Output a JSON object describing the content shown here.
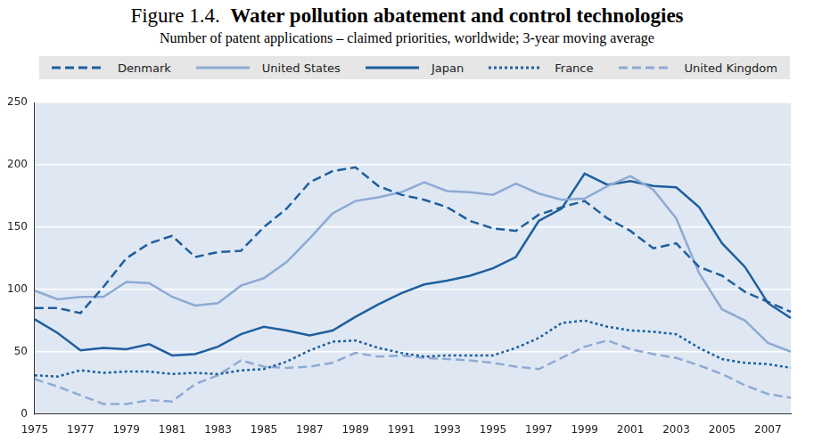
{
  "chart_data": {
    "type": "line",
    "title": "Figure 1.4. Water pollution abatement and control technologies",
    "subtitle": "Number of patent applications – claimed priorities, worldwide; 3-year moving average",
    "categories": [
      "1975",
      null,
      "1977",
      null,
      "1979",
      null,
      "1981",
      null,
      "1983",
      null,
      "1985",
      null,
      "1987",
      null,
      "1989",
      null,
      "1991",
      null,
      "1993",
      null,
      "1995",
      null,
      "1997",
      null,
      "1999",
      null,
      "2001",
      null,
      "2003",
      null,
      "2005",
      null,
      "2007",
      null
    ],
    "series": [
      {
        "name": "Denmark",
        "color": "#1f5f9e",
        "line_style": "dashed",
        "values": [
          85,
          85,
          81,
          102,
          125,
          137,
          143,
          126,
          130,
          131,
          150,
          165,
          186,
          195,
          198,
          183,
          176,
          172,
          166,
          155,
          149,
          147,
          160,
          166,
          171,
          157,
          147,
          133,
          137,
          118,
          111,
          98,
          90,
          82
        ]
      },
      {
        "name": "United States",
        "color": "#8eaad4",
        "line_style": "solid",
        "values": [
          99,
          92,
          94,
          94,
          106,
          105,
          94,
          87,
          89,
          103,
          109,
          122,
          141,
          161,
          171,
          174,
          178,
          186,
          179,
          178,
          176,
          185,
          177,
          172,
          173,
          183,
          191,
          180,
          157,
          113,
          84,
          75,
          57,
          50
        ]
      },
      {
        "name": "Japan",
        "color": "#1f5f9e",
        "line_style": "solid",
        "values": [
          76,
          65,
          51,
          53,
          52,
          56,
          47,
          48,
          54,
          64,
          70,
          67,
          63,
          67,
          78,
          88,
          97,
          104,
          107,
          111,
          117,
          126,
          155,
          165,
          193,
          184,
          187,
          183,
          182,
          166,
          137,
          118,
          89,
          77
        ]
      },
      {
        "name": "France",
        "color": "#1f5f9e",
        "line_style": "dotted",
        "values": [
          31,
          30,
          35,
          33,
          34,
          34,
          32,
          33,
          32,
          35,
          36,
          42,
          51,
          58,
          59,
          53,
          49,
          46,
          47,
          47,
          47,
          53,
          61,
          73,
          75,
          70,
          67,
          66,
          64,
          53,
          44,
          41,
          40,
          37
        ]
      },
      {
        "name": "United Kingdom",
        "color": "#8eaad4",
        "line_style": "dashed",
        "values": [
          28,
          22,
          15,
          8,
          8,
          11,
          10,
          24,
          31,
          43,
          38,
          37,
          38,
          41,
          49,
          46,
          47,
          45,
          44,
          43,
          41,
          38,
          36,
          45,
          54,
          59,
          52,
          48,
          45,
          39,
          32,
          23,
          16,
          13
        ]
      }
    ],
    "ylim": [
      0,
      250
    ],
    "yticks": [
      0,
      50,
      100,
      150,
      200,
      250
    ],
    "grid": true,
    "legend": "top"
  }
}
